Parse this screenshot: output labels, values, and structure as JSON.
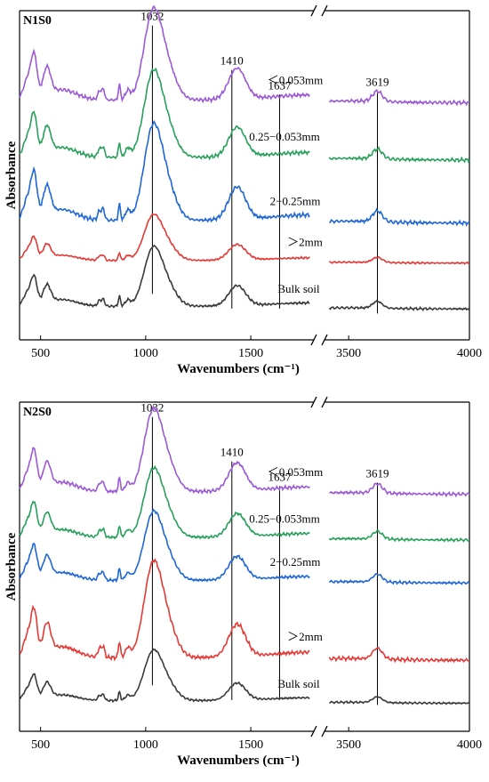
{
  "chart_data": [
    {
      "type": "line",
      "title": "N1S0",
      "xlabel": "Wavenumbers (cm⁻¹)",
      "ylabel": "Absorbance",
      "x_segments": [
        [
          400,
          1800
        ],
        [
          3400,
          4000
        ]
      ],
      "x_ticks": [
        500,
        1000,
        1500,
        3500,
        4000
      ],
      "peaks": [
        1032,
        1410,
        1637,
        3619
      ],
      "series": [
        {
          "name": "<0.053mm",
          "color": "#9b59d6",
          "label_text": "＜0.053mm",
          "base": 0.78,
          "amp": 1.0
        },
        {
          "name": "0.25−0.053mm",
          "color": "#27a05a",
          "label_text": "0.25−0.053mm",
          "base": 0.58,
          "amp": 0.95
        },
        {
          "name": "2−0.25mm",
          "color": "#1f66d6",
          "label_text": "2−0.25mm",
          "base": 0.36,
          "amp": 1.05
        },
        {
          "name": ">2mm",
          "color": "#e53935",
          "label_text": "＞2mm",
          "base": 0.22,
          "amp": 0.5
        },
        {
          "name": "Bulk soil",
          "color": "#3a3a3a",
          "label_text": "Bulk soil",
          "base": 0.06,
          "amp": 0.65
        }
      ]
    },
    {
      "type": "line",
      "title": "N2S0",
      "xlabel": "Wavenumbers (cm⁻¹)",
      "ylabel": "Absorbance",
      "x_segments": [
        [
          400,
          1800
        ],
        [
          3400,
          4000
        ]
      ],
      "x_ticks": [
        500,
        1000,
        1500,
        3500,
        4000
      ],
      "peaks": [
        1032,
        1410,
        1637,
        3619
      ],
      "series": [
        {
          "name": "<0.053mm",
          "color": "#9b59d6",
          "label_text": "＜0.053mm",
          "base": 0.78,
          "amp": 0.9
        },
        {
          "name": "0.25−0.053mm",
          "color": "#27a05a",
          "label_text": "0.25−0.053mm",
          "base": 0.62,
          "amp": 0.75
        },
        {
          "name": "2−0.25mm",
          "color": "#1f66d6",
          "label_text": "2−0.25mm",
          "base": 0.47,
          "amp": 0.75
        },
        {
          "name": ">2mm",
          "color": "#e53935",
          "label_text": "＞2mm",
          "base": 0.2,
          "amp": 1.05
        },
        {
          "name": "Bulk soil",
          "color": "#3a3a3a",
          "label_text": "Bulk soil",
          "base": 0.05,
          "amp": 0.55
        }
      ]
    }
  ]
}
